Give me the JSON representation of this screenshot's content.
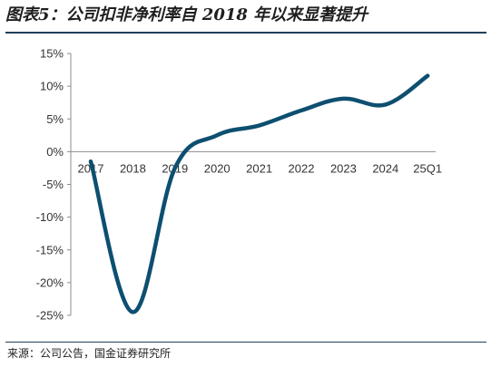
{
  "title": "图表5：公司扣非净利率自 2018 年以来显著提升",
  "source": "来源：公司公告，国金证券研究所",
  "chart_data": {
    "type": "line",
    "title": "图表5：公司扣非净利率自 2018 年以来显著提升",
    "categories": [
      "2017",
      "2018",
      "2019",
      "2020",
      "2021",
      "2022",
      "2023",
      "2024",
      "25Q1"
    ],
    "y_tick_labels": [
      "15%",
      "10%",
      "5%",
      "0%",
      "-5%",
      "-10%",
      "-15%",
      "-20%",
      "-25%"
    ],
    "ylim": [
      -25,
      15
    ],
    "series": [
      {
        "values": [
          -1.5,
          -24.5,
          -2.5,
          2.5,
          4.0,
          6.3,
          8.1,
          7.2,
          11.6
        ]
      }
    ],
    "line_color": "#0d4f70",
    "grid": false,
    "legend": "none"
  }
}
